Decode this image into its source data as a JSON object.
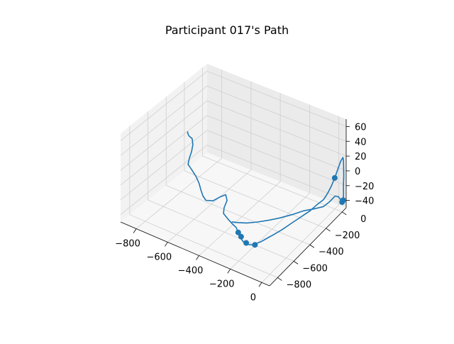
{
  "chart_data": {
    "type": "line3d",
    "title": "Participant 017's Path",
    "xlabel": "",
    "ylabel": "",
    "zlabel": "",
    "x_ticks": [
      "−800",
      "−600",
      "−400",
      "−200",
      "0"
    ],
    "y_ticks": [
      "0",
      "−200",
      "−400",
      "−600",
      "−800"
    ],
    "z_ticks": [
      "60",
      "40",
      "20",
      "0",
      "−20",
      "−40"
    ],
    "xlim": [
      -900,
      50
    ],
    "ylim": [
      -900,
      50
    ],
    "zlim": [
      -50,
      70
    ],
    "grid": true,
    "series": [
      {
        "name": "",
        "color": "#1f77b4",
        "points": [
          [
            -880,
            -200,
            5
          ],
          [
            -870,
            -210,
            3
          ],
          [
            -860,
            -215,
            2
          ],
          [
            -850,
            -200,
            -2
          ],
          [
            -840,
            -210,
            -8
          ],
          [
            -825,
            -250,
            -12
          ],
          [
            -810,
            -300,
            -15
          ],
          [
            -795,
            -340,
            -18
          ],
          [
            -760,
            -360,
            -20
          ],
          [
            -720,
            -380,
            -24
          ],
          [
            -690,
            -400,
            -28
          ],
          [
            -660,
            -430,
            -32
          ],
          [
            -630,
            -460,
            -34
          ],
          [
            -600,
            -480,
            -35
          ],
          [
            -560,
            -470,
            -33
          ],
          [
            -540,
            -430,
            -30
          ],
          [
            -520,
            -400,
            -28
          ],
          [
            -500,
            -420,
            -32
          ],
          [
            -490,
            -470,
            -36
          ],
          [
            -470,
            -510,
            -38
          ],
          [
            -430,
            -530,
            -40
          ],
          [
            -390,
            -550,
            -41
          ],
          [
            -360,
            -560,
            -42
          ],
          [
            -330,
            -590,
            -43
          ],
          [
            -300,
            -620,
            -44
          ],
          [
            -270,
            -640,
            -45
          ],
          [
            -240,
            -650,
            -45
          ],
          [
            -210,
            -640,
            -44
          ],
          [
            -180,
            -600,
            -41
          ],
          [
            -160,
            -560,
            -38
          ],
          [
            -140,
            -520,
            -35
          ],
          [
            -120,
            -470,
            -32
          ],
          [
            -100,
            -420,
            -28
          ],
          [
            -80,
            -380,
            -24
          ],
          [
            -60,
            -340,
            -20
          ],
          [
            -40,
            -300,
            -16
          ],
          [
            -20,
            -260,
            -10
          ],
          [
            0,
            -220,
            -5
          ],
          [
            10,
            -190,
            2
          ],
          [
            20,
            -170,
            10
          ],
          [
            30,
            -150,
            20
          ],
          [
            40,
            -130,
            32
          ],
          [
            45,
            -110,
            40
          ],
          [
            50,
            -95,
            44
          ],
          [
            45,
            -80,
            38
          ],
          [
            40,
            -70,
            26
          ],
          [
            35,
            -60,
            14
          ],
          [
            30,
            -55,
            0
          ],
          [
            25,
            -45,
            -12
          ],
          [
            20,
            -40,
            -22
          ],
          [
            10,
            -35,
            -28
          ],
          [
            0,
            -30,
            -25
          ],
          [
            -10,
            -40,
            -20
          ],
          [
            -20,
            -60,
            -18
          ],
          [
            -40,
            -90,
            -25
          ],
          [
            -60,
            -120,
            -30
          ],
          [
            -100,
            -160,
            -33
          ],
          [
            -140,
            -200,
            -35
          ],
          [
            -180,
            -260,
            -38
          ],
          [
            -220,
            -320,
            -40
          ],
          [
            -260,
            -380,
            -41
          ],
          [
            -300,
            -430,
            -42
          ],
          [
            -340,
            -480,
            -42
          ],
          [
            -380,
            -520,
            -41
          ],
          [
            -400,
            -540,
            -40
          ]
        ],
        "markers": [
          [
            -330,
            -590,
            -43
          ],
          [
            -300,
            -610,
            -44
          ],
          [
            -250,
            -640,
            -45
          ],
          [
            -200,
            -630,
            -44
          ],
          [
            30,
            -150,
            20
          ],
          [
            20,
            -40,
            -22
          ],
          [
            10,
            -35,
            -26
          ]
        ]
      }
    ]
  }
}
